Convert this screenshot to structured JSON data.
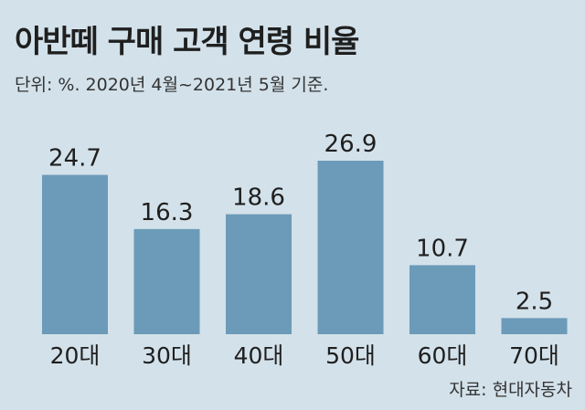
{
  "header": {
    "title": "아반떼 구매 고객 연령 비율",
    "unit_note": "단위: %. 2020년 4월~2021년 5월 기준."
  },
  "footer": {
    "source": "자료: 현대자동차"
  },
  "colors": {
    "background": "#d3e1ea",
    "bar": "#6b9bb8",
    "text": "#1f1f1f"
  },
  "chart_data": {
    "type": "bar",
    "title": "아반떼 구매 고객 연령 비율",
    "categories": [
      "20대",
      "30대",
      "40대",
      "50대",
      "60대",
      "70대"
    ],
    "values": [
      24.7,
      16.3,
      18.6,
      26.9,
      10.7,
      2.5
    ],
    "value_labels": [
      "24.7",
      "16.3",
      "18.6",
      "26.9",
      "10.7",
      "2.5"
    ],
    "ylim": [
      0,
      26.9
    ],
    "grid": false,
    "legend": "none"
  }
}
